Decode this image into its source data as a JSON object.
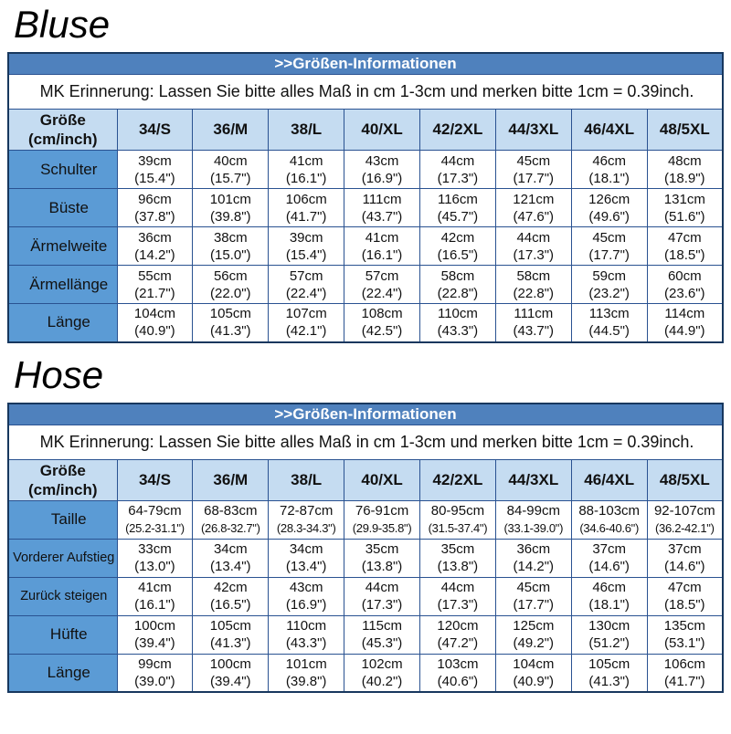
{
  "colors": {
    "banner_bg": "#4f81bd",
    "banner_text": "#ffffff",
    "header_bg": "#c5dcf1",
    "label_bg": "#5b9bd5",
    "border_outer": "#17375e",
    "border_inner": "#2a5291",
    "text": "#111111"
  },
  "sections": [
    {
      "title": "Bluse",
      "banner": ">>Größen-Informationen",
      "note": "MK Erinnerung: Lassen Sie bitte alles Maß in cm 1-3cm und merken bitte 1cm = 0.39inch.",
      "corner": {
        "line1": "Größe",
        "line2": "(cm/inch)"
      },
      "sizes": [
        "34/S",
        "36/M",
        "38/L",
        "40/XL",
        "42/2XL",
        "44/3XL",
        "46/4XL",
        "48/5XL"
      ],
      "rows": [
        {
          "label": "Schulter",
          "cm": [
            "39cm",
            "40cm",
            "41cm",
            "43cm",
            "44cm",
            "45cm",
            "46cm",
            "48cm"
          ],
          "inch": [
            "(15.4\")",
            "(15.7\")",
            "(16.1\")",
            "(16.9\")",
            "(17.3\")",
            "(17.7\")",
            "(18.1\")",
            "(18.9\")"
          ]
        },
        {
          "label": "Büste",
          "cm": [
            "96cm",
            "101cm",
            "106cm",
            "111cm",
            "116cm",
            "121cm",
            "126cm",
            "131cm"
          ],
          "inch": [
            "(37.8\")",
            "(39.8\")",
            "(41.7\")",
            "(43.7\")",
            "(45.7\")",
            "(47.6\")",
            "(49.6\")",
            "(51.6\")"
          ]
        },
        {
          "label": "Ärmelweite",
          "cm": [
            "36cm",
            "38cm",
            "39cm",
            "41cm",
            "42cm",
            "44cm",
            "45cm",
            "47cm"
          ],
          "inch": [
            "(14.2\")",
            "(15.0\")",
            "(15.4\")",
            "(16.1\")",
            "(16.5\")",
            "(17.3\")",
            "(17.7\")",
            "(18.5\")"
          ]
        },
        {
          "label": "Ärmellänge",
          "cm": [
            "55cm",
            "56cm",
            "57cm",
            "57cm",
            "58cm",
            "58cm",
            "59cm",
            "60cm"
          ],
          "inch": [
            "(21.7\")",
            "(22.0\")",
            "(22.4\")",
            "(22.4\")",
            "(22.8\")",
            "(22.8\")",
            "(23.2\")",
            "(23.6\")"
          ]
        },
        {
          "label": "Länge",
          "cm": [
            "104cm",
            "105cm",
            "107cm",
            "108cm",
            "110cm",
            "111cm",
            "113cm",
            "114cm"
          ],
          "inch": [
            "(40.9\")",
            "(41.3\")",
            "(42.1\")",
            "(42.5\")",
            "(43.3\")",
            "(43.7\")",
            "(44.5\")",
            "(44.9\")"
          ]
        }
      ]
    },
    {
      "title": "Hose",
      "banner": ">>Größen-Informationen",
      "note": "MK Erinnerung: Lassen Sie bitte alles Maß in cm 1-3cm und merken bitte 1cm = 0.39inch.",
      "corner": {
        "line1": "Größe",
        "line2": "(cm/inch)"
      },
      "sizes": [
        "34/S",
        "36/M",
        "38/L",
        "40/XL",
        "42/2XL",
        "44/3XL",
        "46/4XL",
        "48/5XL"
      ],
      "rows": [
        {
          "label": "Taille",
          "cm": [
            "64-79cm",
            "68-83cm",
            "72-87cm",
            "76-91cm",
            "80-95cm",
            "84-99cm",
            "88-103cm",
            "92-107cm"
          ],
          "inch": [
            "(25.2-31.1\")",
            "(26.8-32.7\")",
            "(28.3-34.3\")",
            "(29.9-35.8\")",
            "(31.5-37.4\")",
            "(33.1-39.0\")",
            "(34.6-40.6\")",
            "(36.2-42.1\")"
          ]
        },
        {
          "label": "Vorderer Aufstieg",
          "cm": [
            "33cm",
            "34cm",
            "34cm",
            "35cm",
            "35cm",
            "36cm",
            "37cm",
            "37cm"
          ],
          "inch": [
            "(13.0\")",
            "(13.4\")",
            "(13.4\")",
            "(13.8\")",
            "(13.8\")",
            "(14.2\")",
            "(14.6\")",
            "(14.6\")"
          ]
        },
        {
          "label": "Zurück steigen",
          "cm": [
            "41cm",
            "42cm",
            "43cm",
            "44cm",
            "44cm",
            "45cm",
            "46cm",
            "47cm"
          ],
          "inch": [
            "(16.1\")",
            "(16.5\")",
            "(16.9\")",
            "(17.3\")",
            "(17.3\")",
            "(17.7\")",
            "(18.1\")",
            "(18.5\")"
          ]
        },
        {
          "label": "Hüfte",
          "cm": [
            "100cm",
            "105cm",
            "110cm",
            "115cm",
            "120cm",
            "125cm",
            "130cm",
            "135cm"
          ],
          "inch": [
            "(39.4\")",
            "(41.3\")",
            "(43.3\")",
            "(45.3\")",
            "(47.2\")",
            "(49.2\")",
            "(51.2\")",
            "(53.1\")"
          ]
        },
        {
          "label": "Länge",
          "cm": [
            "99cm",
            "100cm",
            "101cm",
            "102cm",
            "103cm",
            "104cm",
            "105cm",
            "106cm"
          ],
          "inch": [
            "(39.0\")",
            "(39.4\")",
            "(39.8\")",
            "(40.2\")",
            "(40.6\")",
            "(40.9\")",
            "(41.3\")",
            "(41.7\")"
          ]
        }
      ]
    }
  ]
}
